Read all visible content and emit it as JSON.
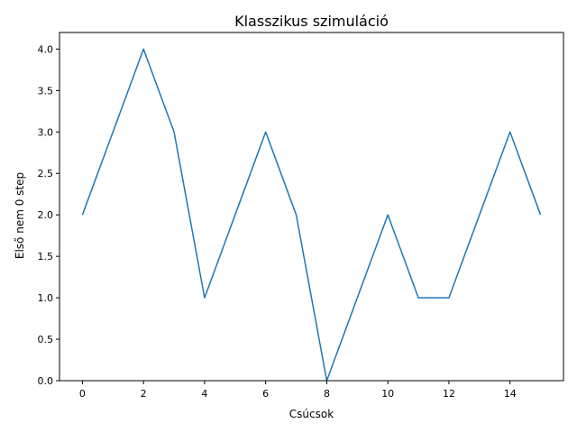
{
  "chart_data": {
    "type": "line",
    "title": "Klasszikus szimuláció",
    "xlabel": "Csúcsok",
    "ylabel": "Első nem 0 step",
    "x": [
      0,
      1,
      2,
      3,
      4,
      5,
      6,
      7,
      8,
      9,
      10,
      11,
      12,
      13,
      14,
      15
    ],
    "series": [
      {
        "values": [
          2,
          3,
          4,
          3,
          1,
          2,
          3,
          2,
          0,
          1,
          2,
          1,
          1,
          2,
          3,
          2
        ],
        "color": "#1f77b4"
      }
    ],
    "xlim": [
      -0.75,
      15.75
    ],
    "ylim": [
      0,
      4.2
    ],
    "xticks": [
      0,
      2,
      4,
      6,
      8,
      10,
      12,
      14
    ],
    "xtick_labels": [
      "0",
      "2",
      "4",
      "6",
      "8",
      "10",
      "12",
      "14"
    ],
    "yticks": [
      0,
      0.5,
      1,
      1.5,
      2,
      2.5,
      3,
      3.5,
      4
    ],
    "ytick_labels": [
      "0.0",
      "0.5",
      "1.0",
      "1.5",
      "2.0",
      "2.5",
      "3.0",
      "3.5",
      "4.0"
    ],
    "grid": false,
    "legend": false
  }
}
